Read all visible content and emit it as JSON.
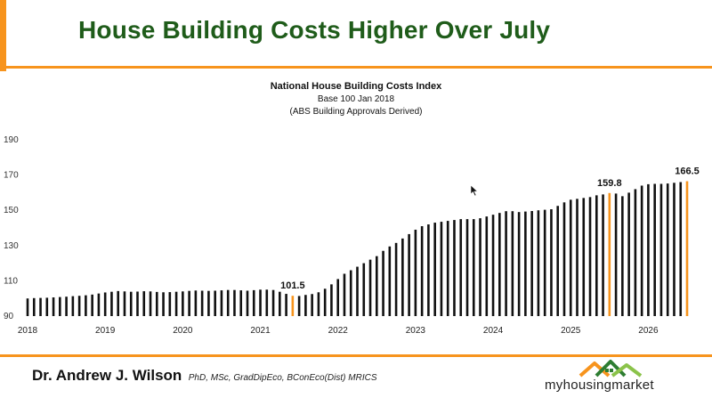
{
  "slide": {
    "title": "House Building Costs Higher Over July",
    "accent_color": "#f7941d",
    "title_color": "#1f5c1a"
  },
  "footer": {
    "author": "Dr. Andrew J. Wilson",
    "credentials": "PhD, MSc, GradDipEco, BConEco(Dist) MRICS",
    "logo_text": "myhousingmarket",
    "logo_icon": "house-roof-icon"
  },
  "chart_data": {
    "type": "bar",
    "title": "National House Building Costs Index",
    "subtitle": "Base 100 Jan 2018",
    "note": "(ABS Building Approvals Derived)",
    "xlabel": "",
    "ylabel": "",
    "ylim": [
      90,
      190
    ],
    "y_ticks": [
      90,
      110,
      130,
      150,
      170,
      190
    ],
    "x_tick_labels": [
      "2018",
      "2019",
      "2020",
      "2021",
      "2022",
      "2023",
      "2024",
      "2025",
      "2026"
    ],
    "grid": false,
    "bar_color": "#111111",
    "highlight_color": "#f7941d",
    "highlights": [
      {
        "index": 41,
        "label": "101.5"
      },
      {
        "index": 90,
        "label": "159.8"
      },
      {
        "index": 102,
        "label": "166.5"
      }
    ],
    "values": [
      100.0,
      100.2,
      100.3,
      100.4,
      100.6,
      100.8,
      101.0,
      101.3,
      101.5,
      101.8,
      102.2,
      102.8,
      103.4,
      103.8,
      104.2,
      104.0,
      103.8,
      103.9,
      104.1,
      104.0,
      103.7,
      103.5,
      103.6,
      103.8,
      104.0,
      104.3,
      104.5,
      104.4,
      104.3,
      104.4,
      104.6,
      104.8,
      104.8,
      104.6,
      104.4,
      104.7,
      105.0,
      105.0,
      104.8,
      103.8,
      102.6,
      101.5,
      101.4,
      102.0,
      102.5,
      103.5,
      105.5,
      108.0,
      111.0,
      114.0,
      116.0,
      118.0,
      120.0,
      122.0,
      124.0,
      127.0,
      129.5,
      131.5,
      134.0,
      136.5,
      139.0,
      141.0,
      142.0,
      143.0,
      143.5,
      144.0,
      144.5,
      145.0,
      145.0,
      145.0,
      145.5,
      146.5,
      147.5,
      148.5,
      149.5,
      149.5,
      149.0,
      149.3,
      149.6,
      150.0,
      150.3,
      150.6,
      152.5,
      154.5,
      156.0,
      156.5,
      157.0,
      157.5,
      158.5,
      159.0,
      159.8,
      159.5,
      158.0,
      160.0,
      162.0,
      164.0,
      164.8,
      165.0,
      165.0,
      165.2,
      165.6,
      166.0,
      166.5
    ]
  }
}
